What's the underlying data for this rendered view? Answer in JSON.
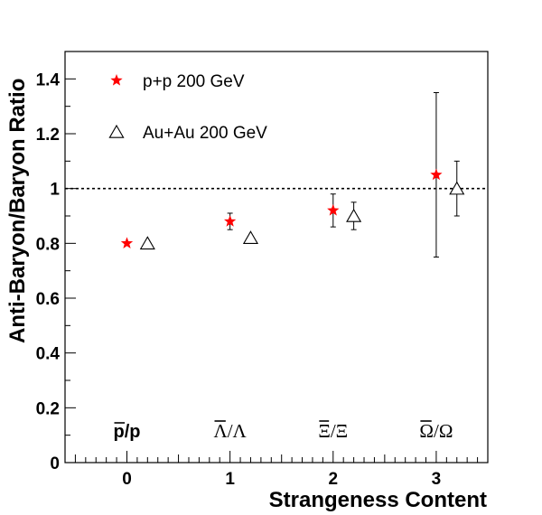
{
  "chart_data": {
    "type": "scatter",
    "xlabel": "Strangeness Content",
    "ylabel": "Anti-Baryon/Baryon Ratio",
    "xlim": [
      -0.6,
      3.5
    ],
    "ylim": [
      0,
      1.5
    ],
    "x_ticks": [
      "0",
      "1",
      "2",
      "3"
    ],
    "y_ticks": [
      "0",
      "0.2",
      "0.4",
      "0.6",
      "0.8",
      "1",
      "1.2",
      "1.4"
    ],
    "reference_line": {
      "y": 1,
      "style": "dashed"
    },
    "legend_position": "top-left",
    "particle_labels": [
      {
        "x": 0,
        "label": "p/p",
        "font": "sans"
      },
      {
        "x": 1,
        "label": "Λ/Λ",
        "font": "serif"
      },
      {
        "x": 2,
        "label": "Ξ/Ξ",
        "font": "serif"
      },
      {
        "x": 3,
        "label": "Ω/Ω",
        "font": "serif"
      }
    ],
    "series": [
      {
        "name": "p+p 200 GeV",
        "marker": "star",
        "color": "#ff0000",
        "points": [
          {
            "x": 0,
            "y": 0.8,
            "err": 0.0
          },
          {
            "x": 1,
            "y": 0.88,
            "err": 0.03
          },
          {
            "x": 2,
            "y": 0.92,
            "err": 0.06
          },
          {
            "x": 3,
            "y": 1.05,
            "err": 0.3
          }
        ]
      },
      {
        "name": "Au+Au 200 GeV",
        "marker": "open-triangle",
        "color": "#000000",
        "points": [
          {
            "x": 0.2,
            "y": 0.8,
            "err": 0.0
          },
          {
            "x": 1.2,
            "y": 0.82,
            "err": 0.0
          },
          {
            "x": 2.2,
            "y": 0.9,
            "err": 0.05
          },
          {
            "x": 3.2,
            "y": 1.0,
            "err": 0.1
          }
        ]
      }
    ]
  }
}
